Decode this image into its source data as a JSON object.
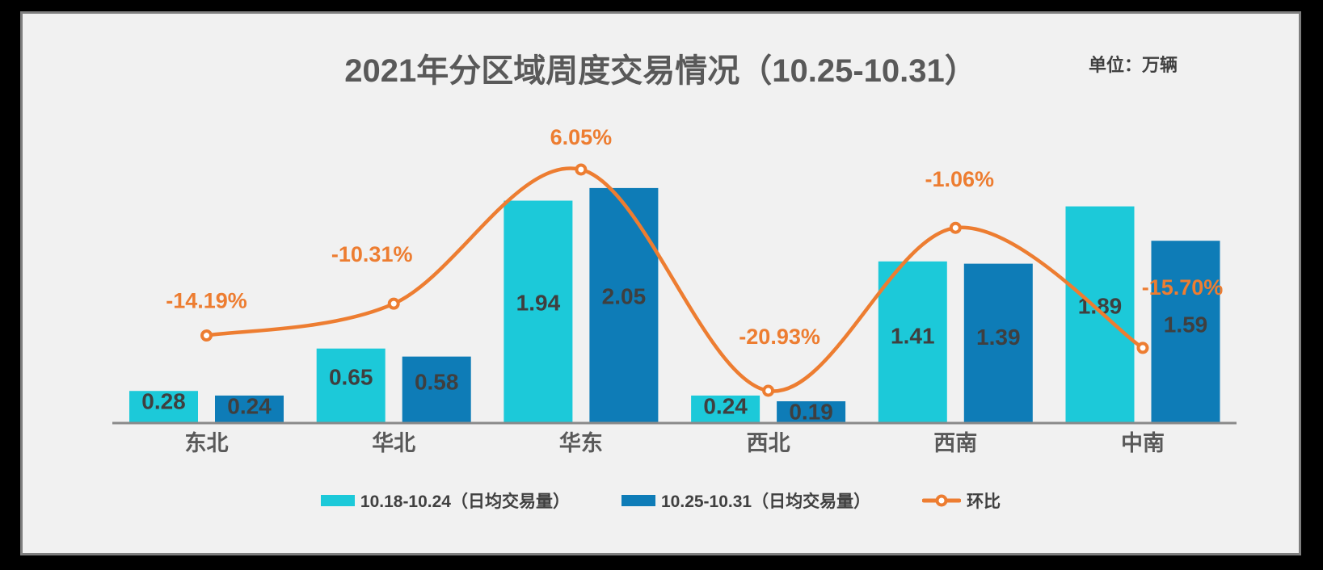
{
  "unit_label": "单位：万辆",
  "chart_data": {
    "type": "combo-bar-line",
    "title": "2021年分区域周度交易情况（10.25-10.31）",
    "unit": "万辆",
    "categories": [
      "东北",
      "华北",
      "华东",
      "西北",
      "西南",
      "中南"
    ],
    "series": [
      {
        "name": "10.18-10.24（日均交易量）",
        "type": "bar",
        "color": "#1CC9D9",
        "values": [
          0.28,
          0.65,
          1.94,
          0.24,
          1.41,
          1.89
        ]
      },
      {
        "name": "10.25-10.31（日均交易量）",
        "type": "bar",
        "color": "#0E7CB7",
        "values": [
          0.24,
          0.58,
          2.05,
          0.19,
          1.39,
          1.59
        ]
      },
      {
        "name": "环比",
        "type": "line",
        "color": "#ED7D31",
        "marker": "circle-white-fill",
        "values_percent": [
          -14.19,
          -10.31,
          6.05,
          -20.93,
          -1.06,
          -15.7
        ],
        "point_labels": [
          "-14.19%",
          "-10.31%",
          "6.05%",
          "-20.93%",
          "-1.06%",
          "-15.70%"
        ]
      }
    ],
    "value_label_color": "#3F3F3F",
    "category_label_color": "#595959",
    "axis_line_color": "#8A8A8A",
    "background": "#F1F1F1",
    "legend_position": "bottom",
    "gridlines": false,
    "value_axis_visible": false
  }
}
